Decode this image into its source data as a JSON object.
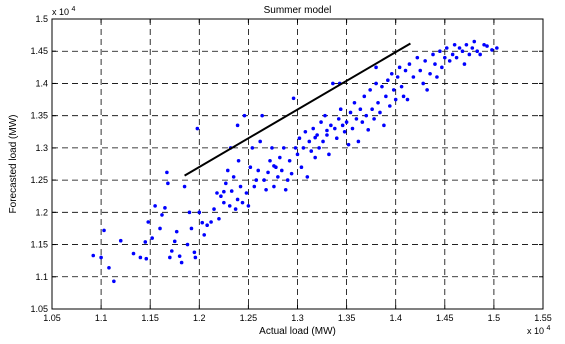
{
  "chart_data": {
    "type": "scatter",
    "title": "Summer model",
    "xlabel": "Actual load (MW)",
    "ylabel": "Forecasted load (MW)",
    "x_exponent_label": "x 10",
    "x_exponent_power": "4",
    "y_exponent_label": "x 10",
    "y_exponent_power": "4",
    "xlim": [
      1.05,
      1.55
    ],
    "ylim": [
      1.05,
      1.5
    ],
    "x_ticks": [
      1.05,
      1.1,
      1.15,
      1.2,
      1.25,
      1.3,
      1.35,
      1.4,
      1.45,
      1.5,
      1.55
    ],
    "y_ticks": [
      1.05,
      1.1,
      1.15,
      1.2,
      1.25,
      1.3,
      1.35,
      1.4,
      1.45,
      1.5
    ],
    "x_tick_labels": [
      "1.05",
      "1.1",
      "1.15",
      "1.2",
      "1.25",
      "1.3",
      "1.35",
      "1.4",
      "1.45",
      "1.5",
      "1.55"
    ],
    "y_tick_labels": [
      "1.05",
      "1.1",
      "1.15",
      "1.2",
      "1.25",
      "1.3",
      "1.35",
      "1.4",
      "1.45",
      "1.5"
    ],
    "grid": true,
    "grid_style": "dashed",
    "marker_color": "#0000ff",
    "line_color": "#000000",
    "reference_line": {
      "x": [
        1.185,
        1.415
      ],
      "y": [
        1.257,
        1.462
      ]
    },
    "series": [
      {
        "points": [
          [
            1.092,
            1.133
          ],
          [
            1.1,
            1.13
          ],
          [
            1.103,
            1.172
          ],
          [
            1.108,
            1.114
          ],
          [
            1.113,
            1.093
          ],
          [
            1.12,
            1.156
          ],
          [
            1.133,
            1.136
          ],
          [
            1.14,
            1.13
          ],
          [
            1.145,
            1.154
          ],
          [
            1.146,
            1.128
          ],
          [
            1.148,
            1.185
          ],
          [
            1.152,
            1.16
          ],
          [
            1.155,
            1.21
          ],
          [
            1.16,
            1.175
          ],
          [
            1.162,
            1.196
          ],
          [
            1.165,
            1.207
          ],
          [
            1.167,
            1.262
          ],
          [
            1.168,
            1.245
          ],
          [
            1.17,
            1.13
          ],
          [
            1.172,
            1.14
          ],
          [
            1.175,
            1.155
          ],
          [
            1.177,
            1.17
          ],
          [
            1.18,
            1.132
          ],
          [
            1.182,
            1.122
          ],
          [
            1.185,
            1.24
          ],
          [
            1.188,
            1.15
          ],
          [
            1.19,
            1.2
          ],
          [
            1.192,
            1.175
          ],
          [
            1.195,
            1.138
          ],
          [
            1.196,
            1.13
          ],
          [
            1.198,
            1.33
          ],
          [
            1.2,
            1.2
          ],
          [
            1.203,
            1.184
          ],
          [
            1.205,
            1.165
          ],
          [
            1.208,
            1.18
          ],
          [
            1.212,
            1.185
          ],
          [
            1.215,
            1.205
          ],
          [
            1.218,
            1.23
          ],
          [
            1.22,
            1.19
          ],
          [
            1.222,
            1.225
          ],
          [
            1.225,
            1.215
          ],
          [
            1.227,
            1.245
          ],
          [
            1.229,
            1.265
          ],
          [
            1.231,
            1.21
          ],
          [
            1.233,
            1.233
          ],
          [
            1.235,
            1.255
          ],
          [
            1.237,
            1.205
          ],
          [
            1.239,
            1.22
          ],
          [
            1.24,
            1.28
          ],
          [
            1.242,
            1.24
          ],
          [
            1.244,
            1.215
          ],
          [
            1.246,
            1.35
          ],
          [
            1.248,
            1.23
          ],
          [
            1.25,
            1.21
          ],
          [
            1.252,
            1.27
          ],
          [
            1.254,
            1.3
          ],
          [
            1.256,
            1.24
          ],
          [
            1.258,
            1.25
          ],
          [
            1.26,
            1.265
          ],
          [
            1.262,
            1.31
          ],
          [
            1.264,
            1.35
          ],
          [
            1.266,
            1.25
          ],
          [
            1.268,
            1.235
          ],
          [
            1.27,
            1.262
          ],
          [
            1.272,
            1.28
          ],
          [
            1.274,
            1.3
          ],
          [
            1.276,
            1.24
          ],
          [
            1.278,
            1.27
          ],
          [
            1.28,
            1.255
          ],
          [
            1.282,
            1.285
          ],
          [
            1.284,
            1.265
          ],
          [
            1.286,
            1.3
          ],
          [
            1.288,
            1.235
          ],
          [
            1.29,
            1.25
          ],
          [
            1.292,
            1.28
          ],
          [
            1.294,
            1.26
          ],
          [
            1.296,
            1.377
          ],
          [
            1.298,
            1.3
          ],
          [
            1.3,
            1.29
          ],
          [
            1.302,
            1.315
          ],
          [
            1.304,
            1.27
          ],
          [
            1.306,
            1.3
          ],
          [
            1.308,
            1.325
          ],
          [
            1.31,
            1.255
          ],
          [
            1.312,
            1.31
          ],
          [
            1.314,
            1.295
          ],
          [
            1.316,
            1.33
          ],
          [
            1.318,
            1.285
          ],
          [
            1.32,
            1.32
          ],
          [
            1.322,
            1.3
          ],
          [
            1.324,
            1.34
          ],
          [
            1.326,
            1.31
          ],
          [
            1.328,
            1.35
          ],
          [
            1.33,
            1.32
          ],
          [
            1.332,
            1.29
          ],
          [
            1.334,
            1.335
          ],
          [
            1.336,
            1.4
          ],
          [
            1.338,
            1.33
          ],
          [
            1.34,
            1.315
          ],
          [
            1.342,
            1.345
          ],
          [
            1.344,
            1.36
          ],
          [
            1.346,
            1.335
          ],
          [
            1.348,
            1.325
          ],
          [
            1.35,
            1.34
          ],
          [
            1.352,
            1.305
          ],
          [
            1.354,
            1.355
          ],
          [
            1.356,
            1.33
          ],
          [
            1.358,
            1.37
          ],
          [
            1.36,
            1.345
          ],
          [
            1.362,
            1.31
          ],
          [
            1.364,
            1.36
          ],
          [
            1.366,
            1.34
          ],
          [
            1.368,
            1.38
          ],
          [
            1.37,
            1.35
          ],
          [
            1.372,
            1.328
          ],
          [
            1.374,
            1.39
          ],
          [
            1.376,
            1.36
          ],
          [
            1.378,
            1.345
          ],
          [
            1.38,
            1.4
          ],
          [
            1.382,
            1.37
          ],
          [
            1.384,
            1.355
          ],
          [
            1.386,
            1.395
          ],
          [
            1.388,
            1.335
          ],
          [
            1.39,
            1.38
          ],
          [
            1.392,
            1.405
          ],
          [
            1.394,
            1.365
          ],
          [
            1.396,
            1.415
          ],
          [
            1.398,
            1.39
          ],
          [
            1.4,
            1.375
          ],
          [
            1.402,
            1.41
          ],
          [
            1.404,
            1.425
          ],
          [
            1.406,
            1.395
          ],
          [
            1.408,
            1.38
          ],
          [
            1.41,
            1.42
          ],
          [
            1.412,
            1.375
          ],
          [
            1.414,
            1.43
          ],
          [
            1.418,
            1.41
          ],
          [
            1.422,
            1.44
          ],
          [
            1.425,
            1.42
          ],
          [
            1.428,
            1.4
          ],
          [
            1.43,
            1.435
          ],
          [
            1.432,
            1.39
          ],
          [
            1.435,
            1.415
          ],
          [
            1.438,
            1.445
          ],
          [
            1.44,
            1.43
          ],
          [
            1.442,
            1.41
          ],
          [
            1.445,
            1.45
          ],
          [
            1.447,
            1.425
          ],
          [
            1.45,
            1.44
          ],
          [
            1.452,
            1.455
          ],
          [
            1.455,
            1.435
          ],
          [
            1.458,
            1.445
          ],
          [
            1.46,
            1.46
          ],
          [
            1.462,
            1.44
          ],
          [
            1.465,
            1.455
          ],
          [
            1.468,
            1.45
          ],
          [
            1.47,
            1.43
          ],
          [
            1.472,
            1.46
          ],
          [
            1.475,
            1.445
          ],
          [
            1.478,
            1.455
          ],
          [
            1.48,
            1.465
          ],
          [
            1.483,
            1.45
          ],
          [
            1.486,
            1.445
          ],
          [
            1.49,
            1.46
          ],
          [
            1.493,
            1.458
          ],
          [
            1.498,
            1.452
          ],
          [
            1.503,
            1.455
          ],
          [
            1.343,
            1.4
          ],
          [
            1.33,
            1.327
          ],
          [
            1.318,
            1.316
          ],
          [
            1.239,
            1.335
          ],
          [
            1.232,
            1.3
          ],
          [
            1.225,
            1.232
          ],
          [
            1.38,
            1.425
          ],
          [
            1.276,
            1.272
          ]
        ]
      }
    ]
  }
}
